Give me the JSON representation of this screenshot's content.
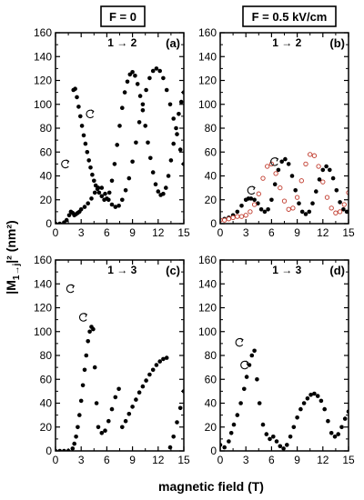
{
  "header": {
    "col_left": "F = 0",
    "col_right": "F = 0.5 kV/cm"
  },
  "axes": {
    "xlabel": "magnetic field (T)",
    "ylabel_main": "|M",
    "ylabel_sub": "1→j",
    "ylabel_tail": "|² (nm²)",
    "xlim": [
      0,
      15
    ],
    "ylim": [
      0,
      160
    ],
    "xticks": [
      "0",
      "3",
      "6",
      "9",
      "12",
      "15"
    ],
    "yticks": [
      "0",
      "20",
      "40",
      "60",
      "80",
      "100",
      "120",
      "140",
      "160"
    ]
  },
  "colors": {
    "filled": "#000000",
    "open": "#c0392b",
    "open_glow": "#f4b6b0"
  },
  "chart_data": [
    {
      "type": "scatter",
      "panel": "(a)",
      "title": "1 → 2",
      "xlim": [
        0,
        15
      ],
      "ylim": [
        0,
        160
      ],
      "series": [
        {
          "style": "filled",
          "x": [
            0,
            0.5,
            1,
            1.3,
            1.6,
            1.8,
            2,
            2.2,
            2.4,
            2.6,
            2.8,
            3,
            3.4,
            3.8,
            4.2,
            4.6,
            5,
            5.4,
            5.8,
            6.2,
            6.6,
            7,
            7.4,
            7.8,
            8.2,
            8.6,
            9,
            9.4,
            9.8,
            10.2,
            10.6,
            11,
            11.4,
            11.8,
            12.2,
            12.6,
            13,
            13.4,
            13.8,
            14.2,
            14.6,
            15
          ],
          "y": [
            0,
            0,
            1,
            3,
            7,
            10,
            9,
            7,
            8,
            9,
            10,
            12,
            14,
            17,
            21,
            26,
            30,
            30,
            25,
            20,
            16,
            14,
            15,
            20,
            28,
            38,
            52,
            68,
            85,
            100,
            112,
            122,
            128,
            130,
            128,
            122,
            112,
            100,
            88,
            75,
            62,
            50
          ]
        },
        {
          "style": "filled",
          "x": [
            2.1,
            2.3,
            2.5,
            2.7,
            2.9,
            3.1,
            3.3,
            3.5,
            3.7,
            3.9,
            4.1,
            4.3,
            4.5,
            4.7,
            4.9,
            5.1,
            5.4,
            5.7,
            6,
            6.3,
            6.6,
            6.9,
            7.2,
            7.5,
            7.8,
            8.1,
            8.4,
            8.7,
            9,
            9.3,
            9.6,
            9.9,
            10.2,
            10.5,
            10.8,
            11.1,
            11.4,
            11.7,
            12,
            12.3,
            12.6,
            12.9,
            13.2,
            13.5,
            13.8,
            14.1,
            14.4,
            14.7,
            15
          ],
          "y": [
            112,
            113,
            106,
            98,
            90,
            82,
            74,
            67,
            60,
            53,
            47,
            41,
            36,
            32,
            29,
            26,
            23,
            20,
            21,
            26,
            36,
            50,
            66,
            82,
            97,
            110,
            119,
            125,
            127,
            124,
            117,
            107,
            95,
            82,
            68,
            55,
            43,
            33,
            27,
            24,
            25,
            30,
            40,
            53,
            67,
            80,
            92,
            102,
            110
          ]
        }
      ]
    },
    {
      "type": "scatter",
      "panel": "(b)",
      "title": "1 → 2",
      "xlim": [
        0,
        15
      ],
      "ylim": [
        0,
        160
      ],
      "series": [
        {
          "style": "filled",
          "x": [
            0,
            0.5,
            1,
            1.5,
            2,
            2.5,
            3,
            3.3,
            3.6,
            4,
            4.4,
            4.8,
            5.2,
            5.6,
            6,
            6.4,
            6.8,
            7.2,
            7.6,
            8,
            8.4,
            8.8,
            9.2,
            9.6,
            10,
            10.4,
            10.8,
            11.2,
            11.6,
            12,
            12.4,
            12.8,
            13.2,
            13.6,
            14,
            14.4,
            14.8,
            15
          ],
          "y": [
            3,
            4,
            5,
            7,
            10,
            15,
            20,
            21,
            21,
            20,
            17,
            12,
            10,
            12,
            20,
            33,
            45,
            52,
            54,
            50,
            40,
            28,
            17,
            10,
            8,
            10,
            17,
            27,
            37,
            45,
            48,
            45,
            38,
            28,
            18,
            12,
            10,
            10
          ]
        },
        {
          "style": "open",
          "x": [
            0,
            0.5,
            1,
            1.5,
            2,
            2.5,
            3,
            3.5,
            4,
            4.5,
            5,
            5.5,
            6,
            6.5,
            7,
            7.5,
            8,
            8.5,
            9,
            9.5,
            10,
            10.5,
            11,
            11.5,
            12,
            12.5,
            13,
            13.5,
            14,
            14.5,
            15
          ],
          "y": [
            3,
            3,
            4,
            5,
            6,
            6,
            7,
            10,
            16,
            25,
            38,
            48,
            50,
            42,
            30,
            19,
            12,
            13,
            22,
            36,
            50,
            58,
            57,
            48,
            35,
            22,
            13,
            9,
            10,
            16,
            26
          ]
        }
      ]
    },
    {
      "type": "scatter",
      "panel": "(c)",
      "title": "1 → 3",
      "xlim": [
        0,
        15
      ],
      "ylim": [
        0,
        160
      ],
      "series": [
        {
          "style": "filled",
          "x": [
            0,
            0.5,
            1,
            1.5,
            2,
            2.2,
            2.4,
            2.6,
            2.8,
            3,
            3.2,
            3.4,
            3.6,
            3.8,
            4,
            4.2,
            4.4,
            4.6,
            4.8,
            5,
            5.4,
            5.8,
            6.2,
            6.6,
            7,
            7.4,
            7.8,
            8.2,
            8.6,
            9,
            9.4,
            9.8,
            10.2,
            10.6,
            11,
            11.4,
            11.8,
            12.2,
            12.6,
            13
          ],
          "y": [
            0,
            0,
            0,
            0,
            2,
            6,
            12,
            20,
            30,
            42,
            55,
            68,
            80,
            92,
            100,
            104,
            102,
            70,
            40,
            20,
            15,
            17,
            25,
            35,
            45,
            52,
            20,
            25,
            31,
            37,
            43,
            49,
            54,
            59,
            64,
            68,
            72,
            75,
            77,
            78
          ]
        },
        {
          "style": "filled",
          "x": [
            13.4,
            13.8,
            14.2,
            14.6,
            15
          ],
          "y": [
            3,
            12,
            24,
            36,
            50
          ]
        }
      ]
    },
    {
      "type": "scatter",
      "panel": "(d)",
      "title": "1 → 3",
      "xlim": [
        0,
        15
      ],
      "ylim": [
        0,
        160
      ],
      "series": [
        {
          "style": "filled",
          "x": [
            0,
            0.5,
            1,
            1.3,
            1.6,
            2,
            2.4,
            2.8,
            3.1,
            3.4,
            3.7,
            4,
            4.3,
            4.6,
            5,
            5.4,
            5.8,
            6.2,
            6.6,
            7,
            7.4,
            7.8,
            8.2,
            8.6,
            9,
            9.4,
            9.8,
            10.2,
            10.6,
            11,
            11.4,
            11.8,
            12.2,
            12.6,
            13,
            13.4,
            13.8,
            14.2,
            14.6,
            15
          ],
          "y": [
            5,
            3,
            8,
            15,
            22,
            30,
            40,
            52,
            62,
            72,
            80,
            84,
            60,
            40,
            22,
            14,
            10,
            12,
            8,
            4,
            2,
            5,
            12,
            20,
            28,
            35,
            40,
            44,
            47,
            48,
            46,
            42,
            35,
            25,
            15,
            12,
            14,
            20,
            27,
            33
          ]
        }
      ]
    }
  ]
}
